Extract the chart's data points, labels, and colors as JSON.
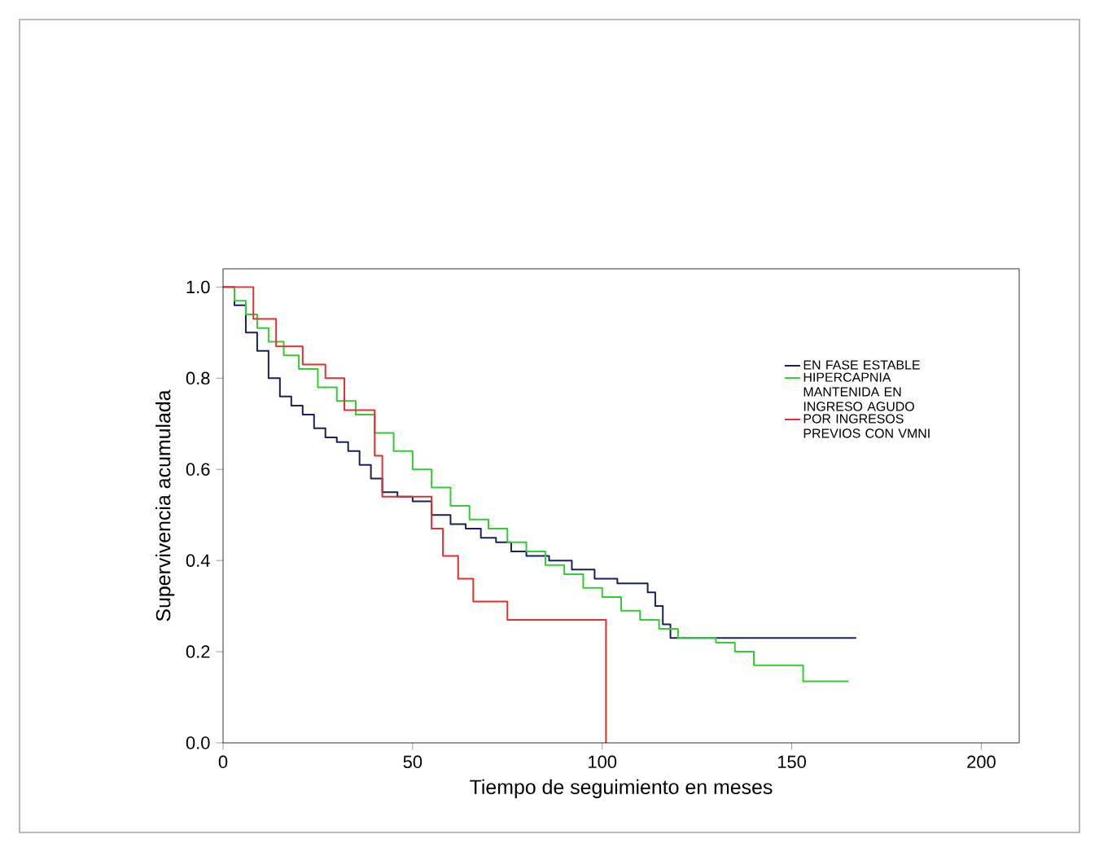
{
  "chart_data": {
    "type": "step",
    "xlabel": "Tiempo de seguimiento en meses",
    "ylabel": "Supervivencia acumulada",
    "xlim": [
      0,
      210
    ],
    "ylim": [
      0,
      1.04
    ],
    "xticks": [
      0,
      50,
      100,
      150,
      200
    ],
    "yticks": [
      {
        "value": 0,
        "label": "0.0"
      },
      {
        "value": 0.2,
        "label": "0.2"
      },
      {
        "value": 0.4,
        "label": "0.4"
      },
      {
        "value": 0.6,
        "label": "0.6"
      },
      {
        "value": 0.8,
        "label": "0.8"
      },
      {
        "value": 1,
        "label": "1.0"
      }
    ],
    "grid": false,
    "legend": "top right",
    "marker": "none",
    "line_style": "solid",
    "series": [
      {
        "name": "EN FASE ESTABLE",
        "color": "#1a1f5e",
        "x": [
          0,
          3,
          6,
          9,
          12,
          15,
          18,
          21,
          24,
          27,
          30,
          33,
          36,
          39,
          42,
          46,
          50,
          55,
          60,
          64,
          68,
          72,
          76,
          80,
          86,
          92,
          98,
          104,
          112,
          114,
          116,
          118,
          167
        ],
        "values": [
          1,
          0.96,
          0.9,
          0.86,
          0.8,
          0.76,
          0.74,
          0.72,
          0.69,
          0.67,
          0.66,
          0.64,
          0.61,
          0.58,
          0.55,
          0.54,
          0.53,
          0.5,
          0.48,
          0.47,
          0.45,
          0.44,
          0.42,
          0.41,
          0.4,
          0.38,
          0.36,
          0.35,
          0.33,
          0.3,
          0.26,
          0.23,
          0.23
        ]
      },
      {
        "name": "HIPERCAPNIA MANTENIDA EN INGRESO AGUDO",
        "color": "#33cc33",
        "x": [
          0,
          3,
          6,
          9,
          12,
          16,
          20,
          25,
          30,
          35,
          40,
          45,
          50,
          55,
          60,
          65,
          70,
          75,
          80,
          85,
          90,
          95,
          100,
          105,
          110,
          115,
          120,
          130,
          135,
          140,
          153,
          165
        ],
        "values": [
          1,
          0.97,
          0.94,
          0.91,
          0.88,
          0.85,
          0.82,
          0.78,
          0.75,
          0.72,
          0.68,
          0.64,
          0.6,
          0.56,
          0.52,
          0.49,
          0.47,
          0.44,
          0.42,
          0.39,
          0.37,
          0.34,
          0.32,
          0.29,
          0.27,
          0.25,
          0.23,
          0.22,
          0.2,
          0.17,
          0.135,
          0.135
        ]
      },
      {
        "name": "POR INGRESOS PREVIOS CON VMNI",
        "color": "#e03030",
        "x": [
          0,
          8,
          14,
          21,
          27,
          32,
          40,
          42,
          55,
          58,
          62,
          66,
          75,
          101
        ],
        "values": [
          1,
          0.93,
          0.87,
          0.83,
          0.8,
          0.73,
          0.63,
          0.54,
          0.47,
          0.41,
          0.36,
          0.31,
          0.27,
          0
        ]
      }
    ]
  }
}
